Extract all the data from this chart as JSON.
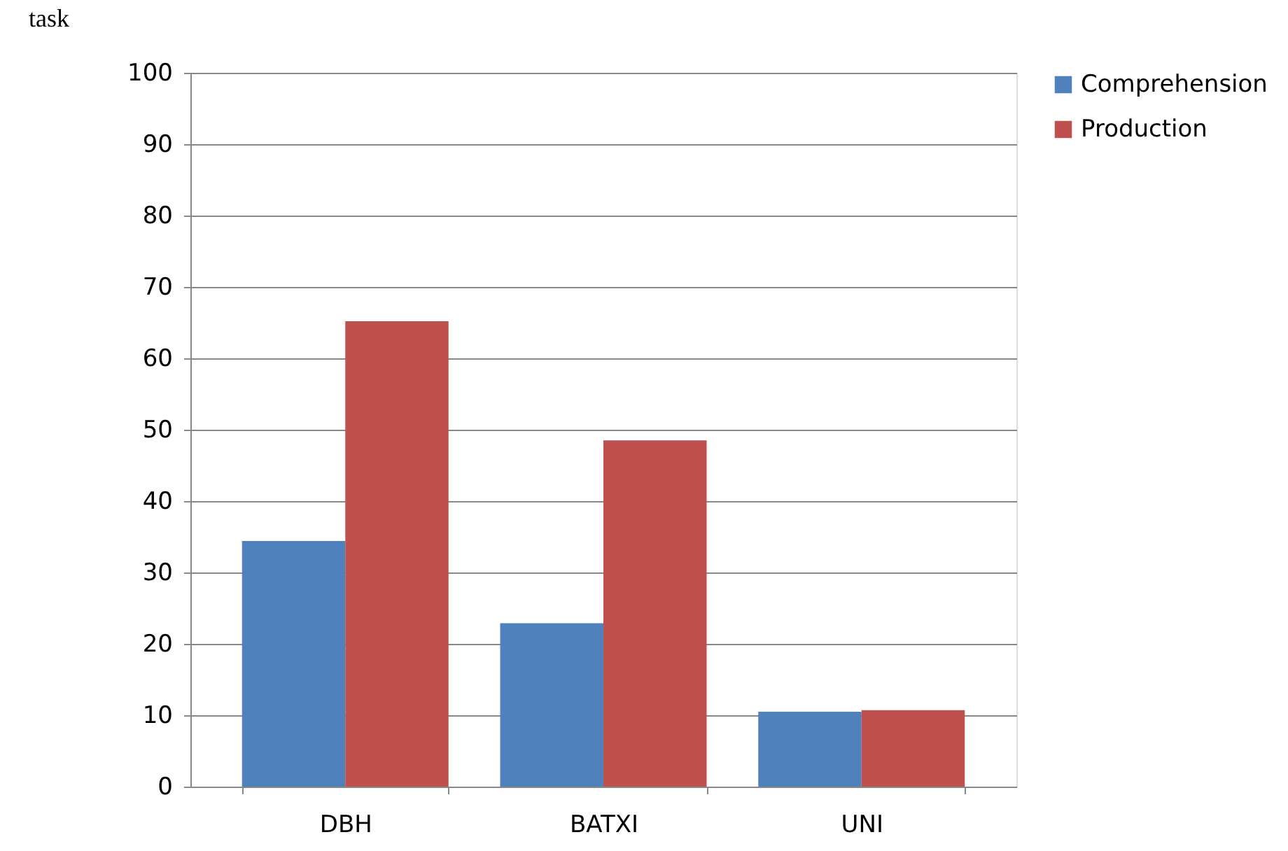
{
  "chart_data": {
    "type": "bar",
    "annotations": [
      "task"
    ],
    "categories": [
      "DBH",
      "BATXI",
      "UNI"
    ],
    "series": [
      {
        "name": "Comprehension",
        "color": "#4f81bd",
        "values": [
          34.4,
          22.9,
          10.5
        ]
      },
      {
        "name": "Production",
        "color": "#c0504d",
        "values": [
          65.2,
          48.5,
          10.7
        ]
      }
    ],
    "ylim": [
      0,
      100
    ],
    "yticks": [
      0,
      10,
      20,
      30,
      40,
      50,
      60,
      70,
      80,
      90,
      100
    ],
    "grid": "y",
    "legend": "right"
  }
}
